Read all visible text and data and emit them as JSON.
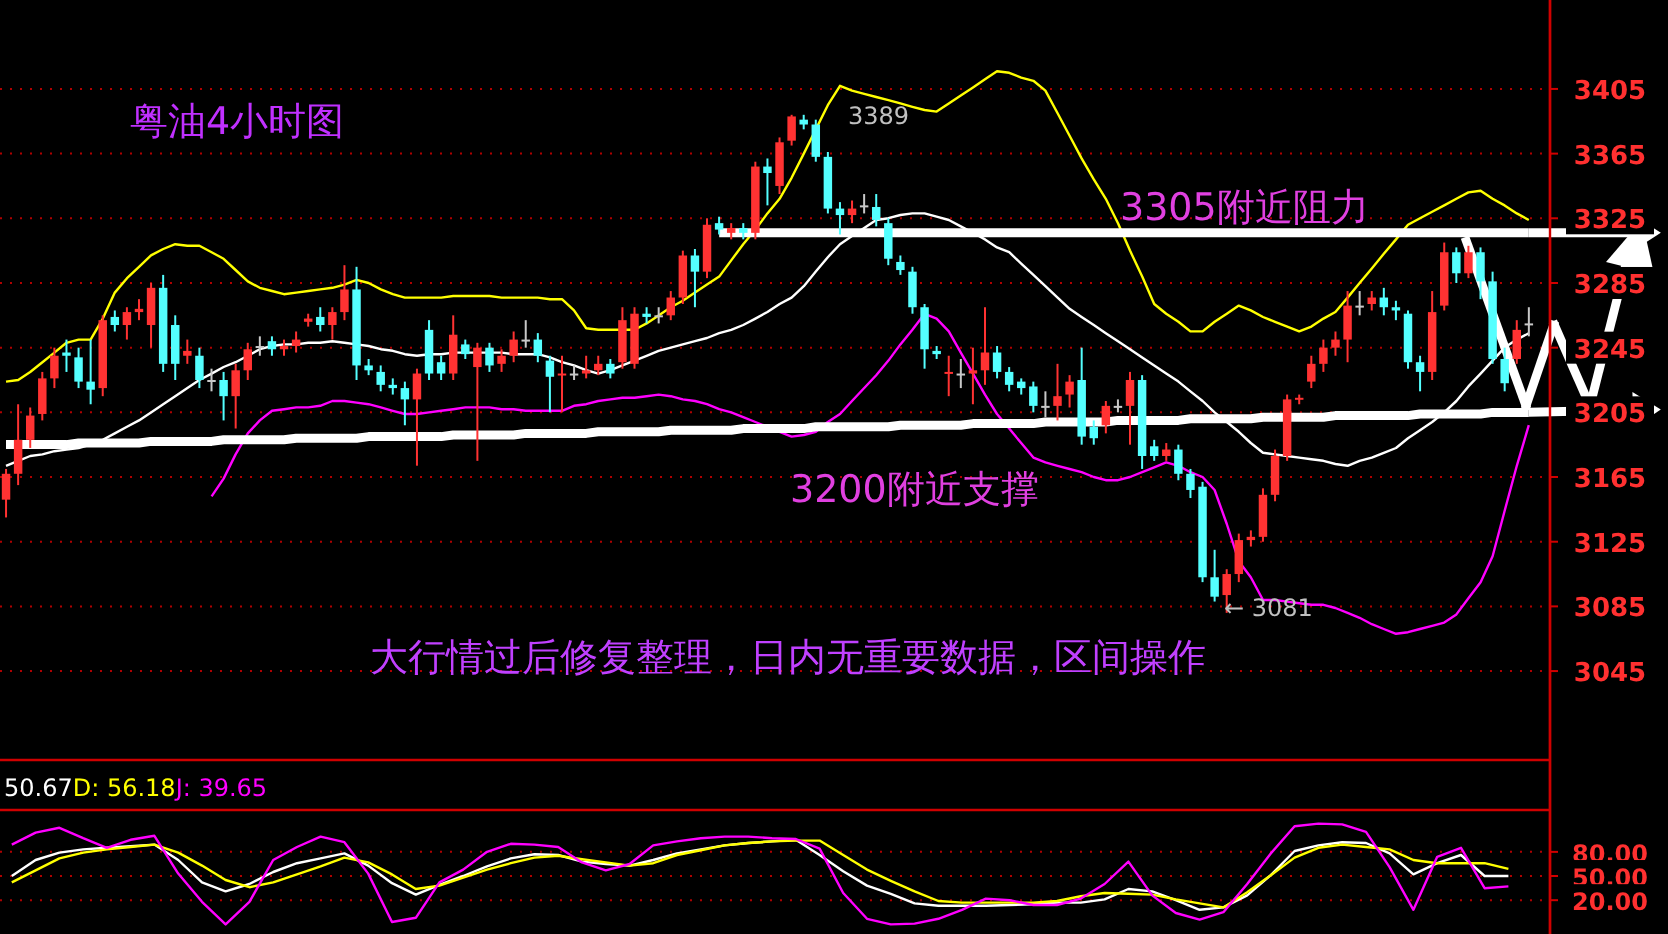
{
  "chart_data": [
    {
      "type": "candlestick",
      "title": "粤油4小时图",
      "annotations": [
        "3305附近阻力",
        "3200附近支撑",
        "大行情过后修复整理，日内无重要数据，区间操作",
        "3389",
        "← 3081"
      ],
      "categories": [
        null,
        null,
        null,
        null,
        null,
        null,
        null,
        null,
        null,
        null,
        null,
        null,
        null,
        null,
        null,
        null,
        null,
        null,
        null,
        null,
        null,
        null,
        null,
        null,
        null,
        null,
        null,
        null,
        null,
        null,
        null,
        null,
        null,
        null,
        null,
        null,
        null,
        null,
        null,
        null,
        null,
        null,
        null,
        null,
        null,
        null,
        null,
        null,
        null,
        null,
        null,
        null,
        null,
        null,
        null,
        null,
        null,
        null,
        null,
        null,
        null,
        null,
        null,
        null,
        null,
        null,
        null,
        null,
        null,
        null,
        null,
        null,
        null,
        null,
        null,
        null,
        null,
        null,
        null,
        null,
        null,
        null,
        null,
        null,
        null,
        null,
        null,
        null,
        null,
        null,
        null,
        null,
        null,
        null,
        null,
        null,
        null,
        null,
        null,
        null,
        null,
        null,
        null,
        null,
        null,
        null,
        null,
        null,
        null,
        null,
        null,
        null,
        null,
        null,
        null,
        null,
        null,
        null,
        null,
        null,
        null,
        null,
        null,
        null,
        null,
        null,
        null
      ],
      "ohlc": [
        [
          3151,
          3170,
          3140,
          3167
        ],
        [
          3167,
          3210,
          3160,
          3188
        ],
        [
          3188,
          3208,
          3183,
          3203
        ],
        [
          3204,
          3230,
          3200,
          3226
        ],
        [
          3226,
          3245,
          3220,
          3240
        ],
        [
          3242,
          3250,
          3230,
          3240
        ],
        [
          3239,
          3245,
          3220,
          3224
        ],
        [
          3224,
          3250,
          3210,
          3219
        ],
        [
          3220,
          3265,
          3215,
          3262
        ],
        [
          3264,
          3268,
          3255,
          3259
        ],
        [
          3259,
          3270,
          3250,
          3267
        ],
        [
          3267,
          3275,
          3262,
          3269
        ],
        [
          3259,
          3285,
          3245,
          3282
        ],
        [
          3282,
          3290,
          3230,
          3235
        ],
        [
          3259,
          3265,
          3225,
          3235
        ],
        [
          3240,
          3250,
          3235,
          3243
        ],
        [
          3240,
          3245,
          3220,
          3225
        ],
        [
          3225,
          3232,
          3218,
          3225
        ],
        [
          3225,
          3230,
          3200,
          3215
        ],
        [
          3215,
          3235,
          3195,
          3231
        ],
        [
          3231,
          3248,
          3225,
          3244
        ],
        [
          3246,
          3252,
          3240,
          3246
        ],
        [
          3249,
          3252,
          3240,
          3244
        ],
        [
          3244,
          3250,
          3240,
          3246
        ],
        [
          3246,
          3255,
          3242,
          3250
        ],
        [
          3261,
          3266,
          3258,
          3263
        ],
        [
          3264,
          3270,
          3255,
          3259
        ],
        [
          3259,
          3270,
          3250,
          3267
        ],
        [
          3267,
          3296,
          3262,
          3281
        ],
        [
          3281,
          3295,
          3225,
          3234
        ],
        [
          3234,
          3238,
          3228,
          3231
        ],
        [
          3230,
          3234,
          3218,
          3222
        ],
        [
          3222,
          3226,
          3216,
          3220
        ],
        [
          3220,
          3224,
          3197,
          3213
        ],
        [
          3213,
          3232,
          3172,
          3229
        ],
        [
          3256,
          3262,
          3225,
          3229
        ],
        [
          3236,
          3240,
          3225,
          3229
        ],
        [
          3229,
          3265,
          3225,
          3253
        ],
        [
          3247,
          3250,
          3238,
          3241
        ],
        [
          3233,
          3248,
          3175,
          3245
        ],
        [
          3245,
          3248,
          3230,
          3234
        ],
        [
          3235,
          3244,
          3230,
          3240
        ],
        [
          3240,
          3255,
          3236,
          3250
        ],
        [
          3250,
          3262,
          3245,
          3250
        ],
        [
          3250,
          3254,
          3236,
          3240
        ],
        [
          3237,
          3240,
          3205,
          3227
        ],
        [
          3228,
          3240,
          3205,
          3229
        ],
        [
          3229,
          3234,
          3225,
          3229
        ],
        [
          3229,
          3240,
          3226,
          3231
        ],
        [
          3231,
          3240,
          3228,
          3235
        ],
        [
          3235,
          3238,
          3226,
          3229
        ],
        [
          3236,
          3270,
          3232,
          3262
        ],
        [
          3235,
          3270,
          3232,
          3266
        ],
        [
          3266,
          3270,
          3260,
          3264
        ],
        [
          3265,
          3270,
          3260,
          3265
        ],
        [
          3265,
          3280,
          3262,
          3276
        ],
        [
          3276,
          3305,
          3272,
          3302
        ],
        [
          3302,
          3306,
          3270,
          3292
        ],
        [
          3292,
          3325,
          3288,
          3321
        ],
        [
          3322,
          3326,
          3315,
          3318
        ],
        [
          3316,
          3322,
          3312,
          3319
        ],
        [
          3319,
          3322,
          3312,
          3316
        ],
        [
          3316,
          3360,
          3312,
          3357
        ],
        [
          3357,
          3362,
          3333,
          3353
        ],
        [
          3345,
          3375,
          3340,
          3372
        ],
        [
          3373,
          3389,
          3370,
          3388
        ],
        [
          3386,
          3389,
          3380,
          3383
        ],
        [
          3383,
          3386,
          3360,
          3363
        ],
        [
          3363,
          3366,
          3328,
          3331
        ],
        [
          3331,
          3335,
          3315,
          3327
        ],
        [
          3327,
          3336,
          3322,
          3331
        ],
        [
          3333,
          3340,
          3328,
          3333
        ],
        [
          3332,
          3340,
          3320,
          3324
        ],
        [
          3322,
          3325,
          3296,
          3300
        ],
        [
          3298,
          3302,
          3290,
          3293
        ],
        [
          3292,
          3295,
          3266,
          3270
        ],
        [
          3270,
          3272,
          3232,
          3244
        ],
        [
          3243,
          3246,
          3238,
          3241
        ],
        [
          3229,
          3240,
          3215,
          3230
        ],
        [
          3229,
          3238,
          3220,
          3229
        ],
        [
          3229,
          3245,
          3210,
          3231
        ],
        [
          3231,
          3270,
          3222,
          3242
        ],
        [
          3242,
          3246,
          3226,
          3230
        ],
        [
          3230,
          3233,
          3218,
          3222
        ],
        [
          3224,
          3226,
          3216,
          3220
        ],
        [
          3221,
          3224,
          3205,
          3209
        ],
        [
          3209,
          3218,
          3202,
          3209
        ],
        [
          3209,
          3235,
          3200,
          3215
        ],
        [
          3216,
          3228,
          3208,
          3224
        ],
        [
          3225,
          3245,
          3185,
          3190
        ],
        [
          3196,
          3200,
          3185,
          3189
        ],
        [
          3197,
          3212,
          3192,
          3209
        ],
        [
          3209,
          3213,
          3205,
          3209
        ],
        [
          3209,
          3230,
          3185,
          3225
        ],
        [
          3225,
          3228,
          3170,
          3178
        ],
        [
          3184,
          3188,
          3175,
          3178
        ],
        [
          3178,
          3186,
          3175,
          3182
        ],
        [
          3182,
          3185,
          3163,
          3167
        ],
        [
          3167,
          3170,
          3152,
          3157
        ],
        [
          3159,
          3162,
          3100,
          3103
        ],
        [
          3103,
          3120,
          3088,
          3091
        ],
        [
          3092,
          3108,
          3081,
          3105
        ],
        [
          3105,
          3130,
          3100,
          3126
        ],
        [
          3126,
          3132,
          3122,
          3128
        ],
        [
          3128,
          3158,
          3125,
          3154
        ],
        [
          3154,
          3182,
          3150,
          3178
        ],
        [
          3178,
          3216,
          3175,
          3213
        ],
        [
          3213,
          3216,
          3210,
          3214
        ],
        [
          3224,
          3240,
          3220,
          3235
        ],
        [
          3235,
          3250,
          3230,
          3245
        ],
        [
          3245,
          3255,
          3240,
          3250
        ],
        [
          3250,
          3280,
          3236,
          3271
        ],
        [
          3271,
          3280,
          3265,
          3271
        ],
        [
          3272,
          3280,
          3268,
          3276
        ],
        [
          3276,
          3282,
          3265,
          3270
        ],
        [
          3270,
          3274,
          3262,
          3268
        ],
        [
          3266,
          3268,
          3232,
          3236
        ],
        [
          3236,
          3240,
          3218,
          3230
        ],
        [
          3230,
          3280,
          3225,
          3267
        ],
        [
          3271,
          3310,
          3268,
          3304
        ],
        [
          3304,
          3307,
          3285,
          3291
        ],
        [
          3291,
          3308,
          3288,
          3304
        ],
        [
          3304,
          3307,
          3275,
          3286
        ],
        [
          3286,
          3292,
          3235,
          3238
        ],
        [
          3238,
          3245,
          3218,
          3223
        ],
        [
          3238,
          3262,
          3235,
          3256
        ],
        [
          3260,
          3270,
          3252,
          3260
        ]
      ],
      "series": [
        {
          "type": "line",
          "color": "#ffff00",
          "values": [
            3224,
            3225,
            3230,
            3236,
            3242,
            3248,
            3250,
            3250,
            3263,
            3279,
            3288,
            3295,
            3302,
            3306,
            3309,
            3308,
            3308,
            3304,
            3300,
            3293,
            3286,
            3282,
            3280,
            3278,
            3279,
            3280,
            3281,
            3282,
            3284,
            3287,
            3285,
            3281,
            3278,
            3276,
            3276,
            3276,
            3276,
            3277,
            3277,
            3277,
            3277,
            3276,
            3276,
            3276,
            3276,
            3275,
            3275,
            3268,
            3257,
            3256,
            3256,
            3256,
            3256,
            3260,
            3265,
            3270,
            3274,
            3279,
            3284,
            3289,
            3299,
            3309,
            3318,
            3328,
            3337,
            3350,
            3365,
            3380,
            3395,
            3407,
            3404,
            3402,
            3400,
            3398,
            3396,
            3394,
            3392,
            3391,
            3396,
            3401,
            3406,
            3411,
            3416,
            3415,
            3412,
            3410,
            3404,
            3390,
            3376,
            3362,
            3349,
            3337,
            3322,
            3305,
            3289,
            3272,
            3266,
            3261,
            3255,
            3255,
            3261,
            3266,
            3271,
            3268,
            3264,
            3261,
            3258,
            3255,
            3258,
            3263,
            3267,
            3276,
            3285,
            3294,
            3303,
            3312,
            3321,
            3325,
            3329,
            3333,
            3337,
            3341,
            3342,
            3337,
            3333,
            3328,
            3324
          ]
        },
        {
          "type": "line",
          "color": "#ffffff",
          "values": [
            3172,
            3175,
            3178,
            3179,
            3181,
            3182,
            3183,
            3185,
            3188,
            3192,
            3196,
            3200,
            3205,
            3210,
            3215,
            3220,
            3225,
            3229,
            3233,
            3236,
            3240,
            3244,
            3246,
            3247,
            3247,
            3248,
            3248,
            3249,
            3248,
            3247,
            3246,
            3244,
            3243,
            3241,
            3240,
            3241,
            3241,
            3242,
            3242,
            3242,
            3242,
            3242,
            3241,
            3241,
            3241,
            3239,
            3236,
            3234,
            3231,
            3229,
            3231,
            3234,
            3237,
            3240,
            3243,
            3245,
            3247,
            3249,
            3251,
            3254,
            3256,
            3259,
            3263,
            3267,
            3272,
            3276,
            3283,
            3292,
            3301,
            3309,
            3314,
            3319,
            3324,
            3325,
            3327,
            3328,
            3328,
            3326,
            3324,
            3320,
            3316,
            3312,
            3307,
            3304,
            3297,
            3290,
            3283,
            3276,
            3269,
            3264,
            3259,
            3254,
            3249,
            3244,
            3239,
            3234,
            3229,
            3224,
            3218,
            3212,
            3205,
            3199,
            3193,
            3186,
            3180,
            3179,
            3178,
            3177,
            3176,
            3175,
            3173,
            3172,
            3175,
            3177,
            3180,
            3183,
            3189,
            3194,
            3199,
            3205,
            3212,
            3221,
            3229,
            3237,
            3245,
            3250,
            3254
          ]
        },
        {
          "type": "line",
          "color": "#ff00ff",
          "values": [
            null,
            null,
            null,
            null,
            null,
            null,
            null,
            null,
            null,
            null,
            null,
            null,
            null,
            null,
            null,
            null,
            null,
            3153,
            3164,
            3179,
            3192,
            3200,
            3206,
            3207,
            3208,
            3208,
            3209,
            3212,
            3212,
            3211,
            3210,
            3208,
            3206,
            3204,
            3204,
            3205,
            3206,
            3207,
            3208,
            3208,
            3208,
            3207,
            3207,
            3206,
            3206,
            3206,
            3206,
            3209,
            3210,
            3212,
            3213,
            3214,
            3214,
            3215,
            3216,
            3215,
            3213,
            3212,
            3210,
            3207,
            3205,
            3202,
            3199,
            3196,
            3193,
            3190,
            3191,
            3193,
            3199,
            3204,
            3212,
            3220,
            3228,
            3237,
            3247,
            3256,
            3266,
            3263,
            3255,
            3242,
            3229,
            3216,
            3204,
            3195,
            3186,
            3177,
            3174,
            3172,
            3170,
            3168,
            3165,
            3163,
            3163,
            3165,
            3168,
            3171,
            3174,
            3172,
            3168,
            3165,
            3157,
            3136,
            3113,
            3103,
            3089,
            3089,
            3088,
            3087,
            3086,
            3086,
            3084,
            3081,
            3078,
            3074,
            3071,
            3068,
            3069,
            3071,
            3073,
            3075,
            3080,
            3090,
            3100,
            3116,
            3144,
            3172,
            3197
          ]
        },
        {
          "type": "line",
          "color": "#ffffff",
          "values": [
            null,
            null,
            null,
            null,
            null,
            null,
            null,
            null,
            null,
            null,
            null,
            null,
            null,
            null,
            null,
            null,
            null,
            null,
            null,
            null,
            null,
            null,
            null,
            null,
            null,
            null,
            null,
            null,
            null,
            null,
            null,
            null,
            null,
            null,
            null,
            null,
            null,
            null,
            null,
            null,
            null,
            null,
            null,
            null,
            null,
            null,
            null,
            null,
            null,
            null,
            null,
            null,
            null,
            null,
            null,
            null,
            null,
            null,
            null,
            3316,
            3316,
            3316,
            3316,
            3316,
            3316,
            3316,
            3316,
            3316,
            3316,
            3316,
            3316,
            3316,
            3316,
            3316,
            3316,
            3316,
            3316,
            3316,
            3316,
            3316,
            3316,
            3316,
            3316,
            3316,
            3316,
            3316,
            3316,
            3316,
            3316,
            3316,
            3316,
            3316,
            3316,
            3316,
            3316,
            3316,
            3316,
            3316,
            3316,
            3316,
            3316,
            3316,
            3316,
            3316,
            3316,
            3316,
            3316,
            3316,
            3316,
            3316,
            3316,
            3316,
            3316,
            3316,
            3316,
            3316,
            3316,
            3316,
            3316,
            3316,
            3316,
            3316,
            3316,
            3316,
            3316,
            3316,
            3316
          ]
        },
        {
          "type": "line",
          "color": "#ffffff",
          "values": [
            3185,
            3185,
            3185,
            3185,
            3185,
            3185,
            3186,
            3186,
            3186,
            3186,
            3186,
            3186,
            3187,
            3187,
            3187,
            3187,
            3187,
            3187,
            3188,
            3188,
            3188,
            3188,
            3188,
            3188,
            3189,
            3189,
            3189,
            3189,
            3189,
            3189,
            3190,
            3190,
            3190,
            3190,
            3190,
            3190,
            3190,
            3191,
            3191,
            3191,
            3191,
            3191,
            3191,
            3192,
            3192,
            3192,
            3192,
            3192,
            3192,
            3193,
            3193,
            3193,
            3193,
            3193,
            3193,
            3194,
            3194,
            3194,
            3194,
            3194,
            3194,
            3195,
            3195,
            3195,
            3195,
            3195,
            3195,
            3196,
            3196,
            3196,
            3196,
            3196,
            3196,
            3196,
            3197,
            3197,
            3197,
            3197,
            3197,
            3197,
            3198,
            3198,
            3198,
            3198,
            3198,
            3198,
            3199,
            3199,
            3199,
            3199,
            3199,
            3199,
            3200,
            3200,
            3200,
            3200,
            3200,
            3200,
            3201,
            3201,
            3201,
            3201,
            3201,
            3201,
            3202,
            3202,
            3202,
            3202,
            3202,
            3202,
            3203,
            3203,
            3203,
            3203,
            3203,
            3203,
            3203,
            3204,
            3204,
            3204,
            3204,
            3204,
            3204,
            3205,
            3205,
            3205,
            3205
          ]
        }
      ],
      "ylim": [
        2990,
        3460
      ],
      "yticks": [
        3045,
        3085,
        3125,
        3165,
        3205,
        3245,
        3285,
        3325,
        3365,
        3405
      ],
      "grid": "y",
      "tick_labels": "y"
    },
    {
      "type": "line",
      "annotations": [
        "50.67",
        "D: 56.18",
        "J: 39.65"
      ],
      "categories": [
        null,
        null,
        null,
        null,
        null,
        null,
        null,
        null,
        null,
        null,
        null,
        null,
        null,
        null,
        null,
        null,
        null,
        null,
        null,
        null,
        null,
        null,
        null,
        null,
        null,
        null,
        null,
        null,
        null,
        null,
        null,
        null,
        null,
        null,
        null,
        null,
        null,
        null,
        null,
        null,
        null,
        null,
        null,
        null,
        null,
        null,
        null,
        null,
        null,
        null,
        null,
        null,
        null,
        null,
        null,
        null,
        null,
        null,
        null,
        null,
        null,
        null,
        null,
        null
      ],
      "series": [
        {
          "color": "#ffffff",
          "values": [
            50,
            70,
            79,
            83,
            85,
            87,
            89,
            70,
            42,
            31,
            40,
            55,
            66,
            72,
            78,
            63,
            41,
            27,
            39,
            50,
            62,
            72,
            77,
            76,
            68,
            65,
            63,
            70,
            78,
            83,
            88,
            91,
            93,
            95,
            76,
            56,
            38,
            28,
            16,
            13,
            13,
            13,
            14,
            15,
            17,
            17,
            21,
            34,
            31,
            20,
            8,
            11,
            26,
            51,
            81,
            88,
            92,
            91,
            78,
            52,
            66,
            76,
            50,
            50
          ]
        },
        {
          "color": "#ffff00",
          "values": [
            42,
            57,
            72,
            79,
            83,
            86,
            89,
            79,
            63,
            45,
            36,
            42,
            52,
            62,
            73,
            67,
            52,
            34,
            38,
            48,
            58,
            66,
            73,
            75,
            71,
            67,
            63,
            66,
            76,
            82,
            88,
            91,
            93,
            94,
            94,
            76,
            58,
            44,
            31,
            19,
            17,
            17,
            17,
            17,
            19,
            25,
            29,
            28,
            27,
            21,
            16,
            11,
            30,
            51,
            73,
            85,
            89,
            86,
            83,
            70,
            66,
            66,
            66,
            59
          ]
        },
        {
          "color": "#ff00ff",
          "values": [
            89,
            104,
            110,
            97,
            85,
            95,
            100,
            53,
            18,
            -10,
            18,
            70,
            86,
            99,
            92,
            53,
            -7,
            -2,
            42,
            58,
            80,
            90,
            89,
            86,
            67,
            57,
            65,
            88,
            93,
            97,
            99,
            99,
            97,
            96,
            84,
            29,
            -3,
            -10,
            -9,
            -3,
            8,
            22,
            20,
            14,
            14,
            22,
            40,
            68,
            26,
            4,
            -4,
            5,
            40,
            78,
            112,
            115,
            114,
            105,
            61,
            8,
            74,
            85,
            35,
            37
          ]
        }
      ],
      "ylim": [
        -22,
        132
      ],
      "yticks": [
        {
          "value": 80,
          "label": "80.00"
        },
        {
          "value": 50,
          "label": "50.00"
        },
        {
          "value": 20,
          "label": "20.00"
        }
      ],
      "grid": "y",
      "tick_labels": "y"
    }
  ]
}
